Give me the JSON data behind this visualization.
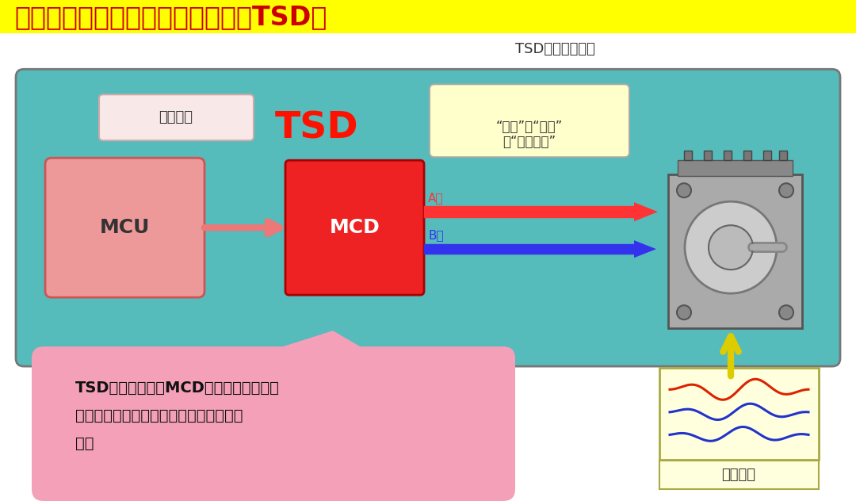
{
  "title": "用于安全驱动电机的热关断功能（TSD）",
  "title_bg": "#FFFF00",
  "title_color": "#CC0000",
  "bg_color": "#FFFFFF",
  "main_bg": "#55BBBB",
  "subtitle": "TSD电路：热关断",
  "label_caozuo": "操作信号",
  "label_mcu": "MCU",
  "label_tsd": "TSD",
  "label_mcd": "MCD",
  "label_fangxiang_line1": "“方向”、“大小”",
  "label_fangxiang_line2": "和“电流合成”",
  "label_a_xiang": "A相",
  "label_b_xiang": "B相",
  "label_dianjidianli": "电机电流",
  "callout_text_line1": "TSD的功能在于当MCD芯片温度超过规定",
  "callout_text_line2": "值时关闭输出，并保持该状态直至温度下",
  "callout_text_line3": "降。",
  "callout_bg": "#F4A0B8",
  "arrow_color_main": "#EE7777",
  "arrow_color_a": "#FF3333",
  "arrow_color_b": "#3333EE",
  "yellow_box_bg": "#FFFFCC",
  "motor_signal_bg": "#FFFFDD",
  "caozuo_bg": "#F8E8E8",
  "mcu_bg": "#EE9999",
  "mcd_bg": "#EE2222"
}
